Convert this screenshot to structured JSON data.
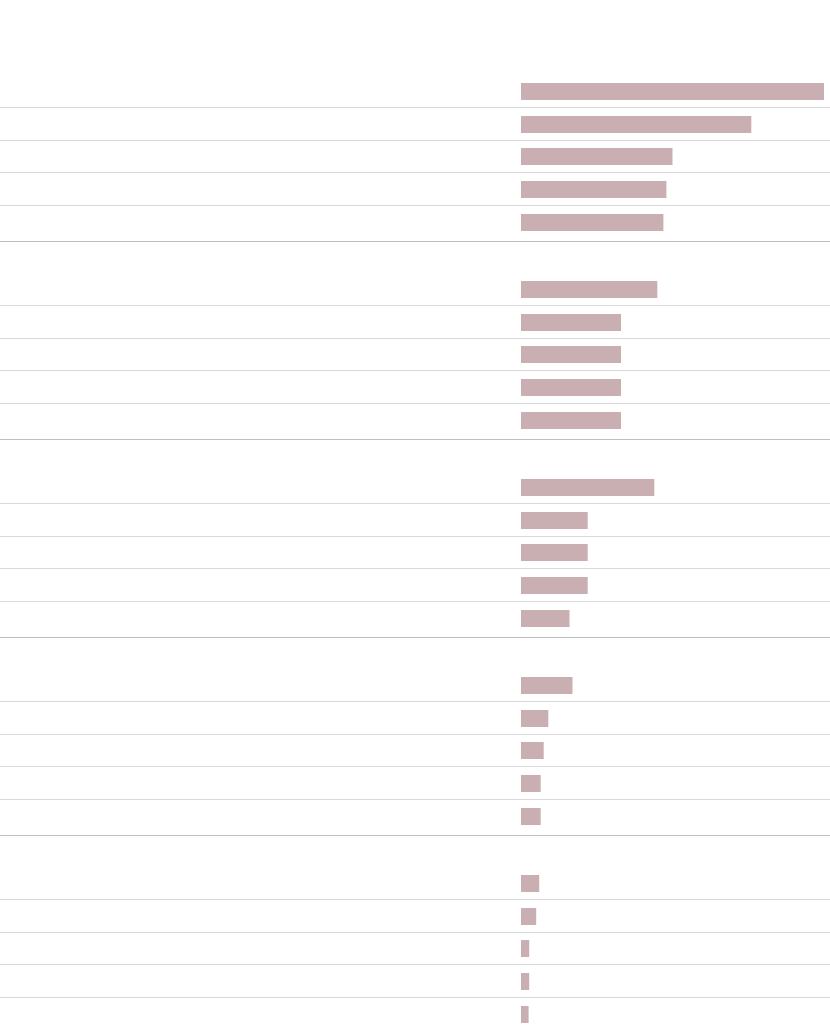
{
  "colors": {
    "bar": "#c9afb1",
    "row_rule": "#d9d9d9",
    "group_rule": "#bdbdbd",
    "background": "#ffffff"
  },
  "chart_data": {
    "type": "bar",
    "orientation": "horizontal",
    "title": "",
    "xlabel": "",
    "ylabel": "",
    "grid": false,
    "legend": "none",
    "xlim": [
      0,
      100
    ],
    "groups": [
      {
        "values": [
          100,
          76,
          50,
          48,
          47
        ]
      },
      {
        "values": [
          45,
          33,
          33,
          33,
          33
        ]
      },
      {
        "values": [
          44,
          22,
          22,
          22,
          16
        ]
      },
      {
        "values": [
          17,
          9,
          7.5,
          6.5,
          6.5
        ]
      },
      {
        "values": [
          6,
          5,
          2.7,
          2.7,
          2.5
        ]
      }
    ]
  }
}
